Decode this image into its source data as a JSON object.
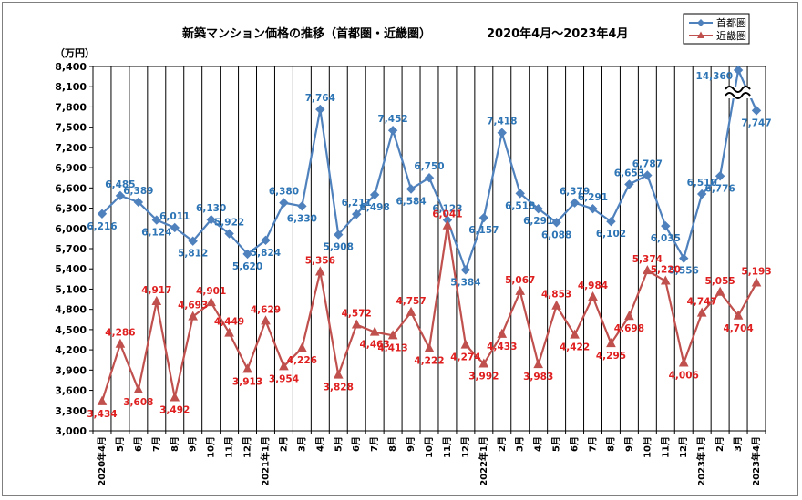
{
  "chart_data": {
    "type": "line",
    "title": "新築マンション価格の推移（首都圏・近畿圏）",
    "subtitle": "2020年4月～2023年4月",
    "ylabel": "（万円）",
    "ylim": [
      3000,
      8400
    ],
    "yticks": [
      3000,
      3300,
      3600,
      3900,
      4200,
      4500,
      4800,
      5100,
      5400,
      5700,
      6000,
      6300,
      6600,
      6900,
      7200,
      7500,
      7800,
      8100,
      8400
    ],
    "ytick_labels": [
      "3,000",
      "3,300",
      "3,600",
      "3,900",
      "4,200",
      "4,500",
      "4,800",
      "5,100",
      "5,400",
      "5,700",
      "6,000",
      "6,300",
      "6,600",
      "6,900",
      "7,200",
      "7,500",
      "7,800",
      "8,100",
      "8,400"
    ],
    "categories": [
      "2020年4月",
      "5月",
      "6月",
      "7月",
      "8月",
      "9月",
      "10月",
      "11月",
      "12月",
      "2021年1月",
      "2月",
      "3月",
      "4月",
      "5月",
      "6月",
      "7月",
      "8月",
      "9月",
      "10月",
      "11月",
      "12月",
      "2022年1月",
      "2月",
      "3月",
      "4月",
      "5月",
      "6月",
      "7月",
      "8月",
      "9月",
      "10月",
      "11月",
      "12月",
      "2023年1月",
      "2月",
      "3月",
      "2023年4月"
    ],
    "legend_position": "top-right",
    "grid": "vertical",
    "axis_break": {
      "series": "首都圏",
      "index": 35
    },
    "series": [
      {
        "name": "首都圏",
        "color": "#4f81bd",
        "label_color": "#2e75b6",
        "marker": "diamond",
        "values": [
          6216,
          6485,
          6389,
          6124,
          6011,
          5812,
          6130,
          5922,
          5620,
          5824,
          6380,
          6330,
          7764,
          5908,
          6211,
          6498,
          7452,
          6584,
          6750,
          6123,
          5384,
          6157,
          7418,
          6518,
          6291,
          6088,
          6379,
          6291,
          6102,
          6653,
          6787,
          6035,
          5556,
          6510,
          6776,
          14360,
          7747
        ],
        "labels": [
          "6,216",
          "6,485",
          "6,389",
          "6,124",
          "6,011",
          "5,812",
          "6,130",
          "5,922",
          "5,620",
          "5,824",
          "6,380",
          "6,330",
          "7,764",
          "5,908",
          "6,211",
          "6,498",
          "7,452",
          "6,584",
          "6,750",
          "6,123",
          "5,384",
          "6,157",
          "7,418",
          "6,518",
          "6,291",
          "6,088",
          "6,379",
          "6,291",
          "6,102",
          "6,653",
          "6,787",
          "6,035",
          "5,556",
          "6,510",
          "6,776",
          "14,360",
          "7,747"
        ]
      },
      {
        "name": "近畿圏",
        "color": "#c0504d",
        "label_color": "#e02020",
        "marker": "triangle",
        "values": [
          3434,
          4286,
          3608,
          4917,
          3492,
          4693,
          4901,
          4449,
          3913,
          4629,
          3954,
          4226,
          5356,
          3828,
          4572,
          4463,
          4413,
          4757,
          4222,
          6041,
          4274,
          3992,
          4433,
          5067,
          3983,
          4853,
          4422,
          4984,
          4295,
          4698,
          5374,
          5220,
          4006,
          4747,
          5055,
          4704,
          5193
        ],
        "labels": [
          "3,434",
          "4,286",
          "3,608",
          "4,917",
          "3,492",
          "4,693",
          "4,901",
          "4,449",
          "3,913",
          "4,629",
          "3,954",
          "4,226",
          "5,356",
          "3,828",
          "4,572",
          "4,463",
          "4,413",
          "4,757",
          "4,222",
          "6,041",
          "4,274",
          "3,992",
          "4,433",
          "5,067",
          "3,983",
          "4,853",
          "4,422",
          "4,984",
          "4,295",
          "4,698",
          "5,374",
          "5,220",
          "4,006",
          "4,747",
          "5,055",
          "4,704",
          "5,193"
        ]
      }
    ]
  }
}
